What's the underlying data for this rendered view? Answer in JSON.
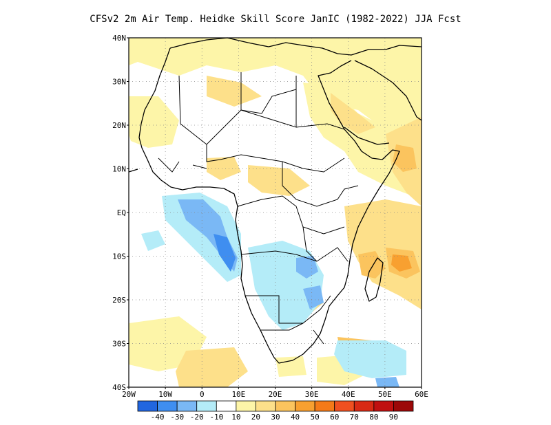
{
  "title": "CFSv2  2m Air Temp. Heidke Skill Score JanIC (1982-2022) JJA Fcst",
  "axes": {
    "lat_ticks": [
      "40N",
      "30N",
      "20N",
      "10N",
      "EQ",
      "10S",
      "20S",
      "30S",
      "40S"
    ],
    "lon_ticks": [
      "20W",
      "10W",
      "0",
      "10E",
      "20E",
      "30E",
      "40E",
      "50E",
      "60E"
    ],
    "lon_range": [
      -20,
      60
    ],
    "lat_range": [
      -40,
      40
    ],
    "grid": "dotted"
  },
  "colorbar": {
    "colors": [
      "#2166e0",
      "#3f8ef0",
      "#7ab8f5",
      "#b4ecf8",
      "#ffffff",
      "#fdf5a8",
      "#fde08a",
      "#fbc45e",
      "#f8a030",
      "#f57a18",
      "#f05020",
      "#d82a14",
      "#c01010",
      "#9c0808"
    ],
    "labels": [
      "-40",
      "-30",
      "-20",
      "-10",
      "10",
      "20",
      "30",
      "40",
      "50",
      "60",
      "70",
      "80",
      "90"
    ]
  }
}
